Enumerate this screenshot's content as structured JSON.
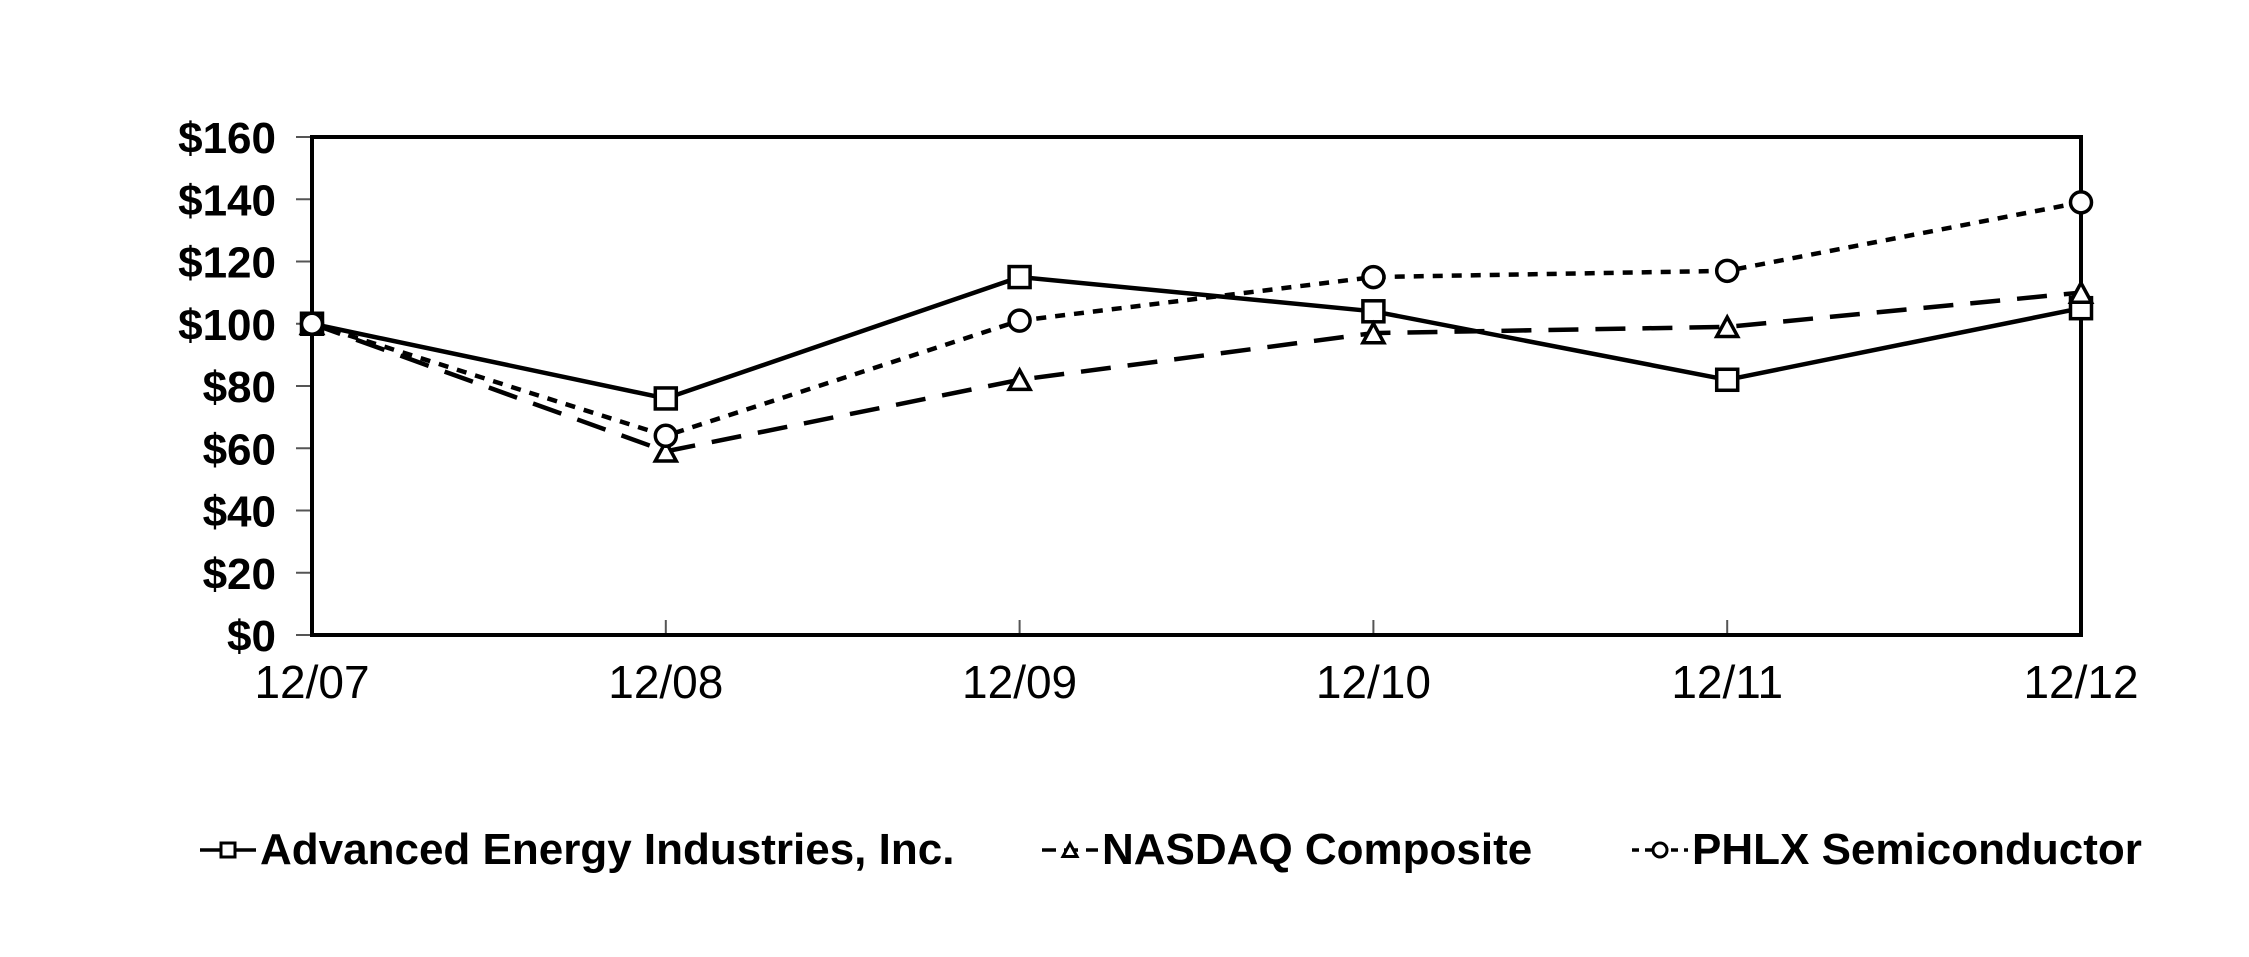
{
  "chart_data": {
    "type": "line",
    "title": "",
    "xlabel": "",
    "ylabel": "",
    "categories": [
      "12/07",
      "12/08",
      "12/09",
      "12/10",
      "12/11",
      "12/12"
    ],
    "series": [
      {
        "name": "Advanced Energy Industries, Inc.",
        "values": [
          100,
          76,
          115,
          104,
          82,
          105
        ],
        "line_style": "solid",
        "marker": "square"
      },
      {
        "name": "NASDAQ Composite",
        "values": [
          100,
          59,
          82,
          97,
          99,
          110
        ],
        "line_style": "long-dash",
        "marker": "triangle"
      },
      {
        "name": "PHLX Semiconductor",
        "values": [
          100,
          64,
          101,
          115,
          117,
          139
        ],
        "line_style": "short-dash",
        "marker": "circle"
      }
    ],
    "ylim": [
      0,
      160
    ],
    "y_tick_step": 20,
    "y_tick_labels": [
      "$0",
      "$20",
      "$40",
      "$60",
      "$80",
      "$100",
      "$120",
      "$140",
      "$160"
    ],
    "grid": false,
    "legend_position": "bottom",
    "line_color": "#000000",
    "marker_fill": "#ffffff",
    "background": "#ffffff"
  }
}
